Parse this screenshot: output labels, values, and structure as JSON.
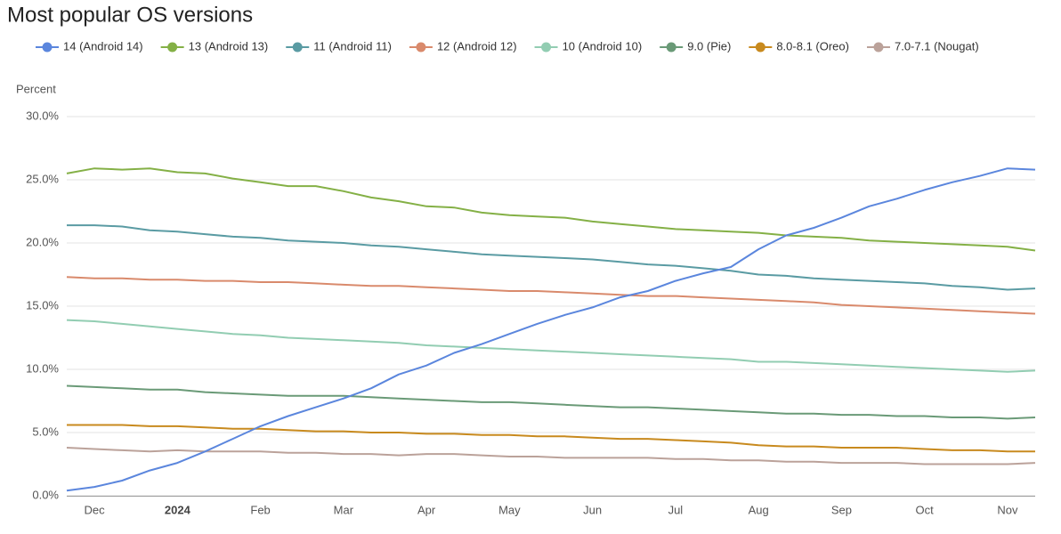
{
  "chart_data": {
    "type": "line",
    "title": "Most popular OS versions",
    "y_label": "Percent",
    "grid": true,
    "legend": "top",
    "categories": [
      null,
      "Dec",
      null,
      null,
      "2024",
      null,
      null,
      "Feb",
      null,
      null,
      "Mar",
      null,
      null,
      "Apr",
      null,
      null,
      "May",
      null,
      null,
      "Jun",
      null,
      null,
      "Jul",
      null,
      null,
      "Aug",
      null,
      null,
      "Sep",
      null,
      null,
      "Oct",
      null,
      null,
      "Nov",
      null
    ],
    "ylim": [
      0,
      30
    ],
    "yticks": [
      {
        "value": 0,
        "label": "0.0%"
      },
      {
        "value": 5,
        "label": "5.0%"
      },
      {
        "value": 10,
        "label": "10.0%"
      },
      {
        "value": 15,
        "label": "15.0%"
      },
      {
        "value": 20,
        "label": "20.0%"
      },
      {
        "value": 25,
        "label": "25.0%"
      },
      {
        "value": 30,
        "label": "30.0%"
      }
    ],
    "series": [
      {
        "name": "14 (Android 14)",
        "color": "#5b86dd",
        "values": [
          0.4,
          0.7,
          1.2,
          2.0,
          2.6,
          3.5,
          4.5,
          5.5,
          6.3,
          7.0,
          7.7,
          8.5,
          9.6,
          10.3,
          11.3,
          12.0,
          12.8,
          13.6,
          14.3,
          14.9,
          15.7,
          16.2,
          17.0,
          17.6,
          18.1,
          19.5,
          20.6,
          21.2,
          22.0,
          22.9,
          23.5,
          24.2,
          24.8,
          25.3,
          25.9,
          25.8
        ]
      },
      {
        "name": "13 (Android 13)",
        "color": "#84b046",
        "values": [
          25.5,
          25.9,
          25.8,
          25.9,
          25.6,
          25.5,
          25.1,
          24.8,
          24.5,
          24.5,
          24.1,
          23.6,
          23.3,
          22.9,
          22.8,
          22.4,
          22.2,
          22.1,
          22.0,
          21.7,
          21.5,
          21.3,
          21.1,
          21.0,
          20.9,
          20.8,
          20.6,
          20.5,
          20.4,
          20.2,
          20.1,
          20.0,
          19.9,
          19.8,
          19.7,
          19.4
        ]
      },
      {
        "name": "11 (Android 11)",
        "color": "#5a9ba3",
        "values": [
          21.4,
          21.4,
          21.3,
          21.0,
          20.9,
          20.7,
          20.5,
          20.4,
          20.2,
          20.1,
          20.0,
          19.8,
          19.7,
          19.5,
          19.3,
          19.1,
          19.0,
          18.9,
          18.8,
          18.7,
          18.5,
          18.3,
          18.2,
          18.0,
          17.8,
          17.5,
          17.4,
          17.2,
          17.1,
          17.0,
          16.9,
          16.8,
          16.6,
          16.5,
          16.3,
          16.4
        ]
      },
      {
        "name": "12 (Android 12)",
        "color": "#d98a6c",
        "values": [
          17.3,
          17.2,
          17.2,
          17.1,
          17.1,
          17.0,
          17.0,
          16.9,
          16.9,
          16.8,
          16.7,
          16.6,
          16.6,
          16.5,
          16.4,
          16.3,
          16.2,
          16.2,
          16.1,
          16.0,
          15.9,
          15.8,
          15.8,
          15.7,
          15.6,
          15.5,
          15.4,
          15.3,
          15.1,
          15.0,
          14.9,
          14.8,
          14.7,
          14.6,
          14.5,
          14.4
        ]
      },
      {
        "name": "10 (Android 10)",
        "color": "#92cdb2",
        "values": [
          13.9,
          13.8,
          13.6,
          13.4,
          13.2,
          13.0,
          12.8,
          12.7,
          12.5,
          12.4,
          12.3,
          12.2,
          12.1,
          11.9,
          11.8,
          11.7,
          11.6,
          11.5,
          11.4,
          11.3,
          11.2,
          11.1,
          11.0,
          10.9,
          10.8,
          10.6,
          10.6,
          10.5,
          10.4,
          10.3,
          10.2,
          10.1,
          10.0,
          9.9,
          9.8,
          9.9
        ]
      },
      {
        "name": "9.0 (Pie)",
        "color": "#6a9a77",
        "values": [
          8.7,
          8.6,
          8.5,
          8.4,
          8.4,
          8.2,
          8.1,
          8.0,
          7.9,
          7.9,
          7.9,
          7.8,
          7.7,
          7.6,
          7.5,
          7.4,
          7.4,
          7.3,
          7.2,
          7.1,
          7.0,
          7.0,
          6.9,
          6.8,
          6.7,
          6.6,
          6.5,
          6.5,
          6.4,
          6.4,
          6.3,
          6.3,
          6.2,
          6.2,
          6.1,
          6.2
        ]
      },
      {
        "name": "8.0-8.1 (Oreo)",
        "color": "#c88a1e",
        "values": [
          5.6,
          5.6,
          5.6,
          5.5,
          5.5,
          5.4,
          5.3,
          5.3,
          5.2,
          5.1,
          5.1,
          5.0,
          5.0,
          4.9,
          4.9,
          4.8,
          4.8,
          4.7,
          4.7,
          4.6,
          4.5,
          4.5,
          4.4,
          4.3,
          4.2,
          4.0,
          3.9,
          3.9,
          3.8,
          3.8,
          3.8,
          3.7,
          3.6,
          3.6,
          3.5,
          3.5
        ]
      },
      {
        "name": "7.0-7.1 (Nougat)",
        "color": "#bba29a",
        "values": [
          3.8,
          3.7,
          3.6,
          3.5,
          3.6,
          3.5,
          3.5,
          3.5,
          3.4,
          3.4,
          3.3,
          3.3,
          3.2,
          3.3,
          3.3,
          3.2,
          3.1,
          3.1,
          3.0,
          3.0,
          3.0,
          3.0,
          2.9,
          2.9,
          2.8,
          2.8,
          2.7,
          2.7,
          2.6,
          2.6,
          2.6,
          2.5,
          2.5,
          2.5,
          2.5,
          2.6
        ]
      }
    ]
  }
}
